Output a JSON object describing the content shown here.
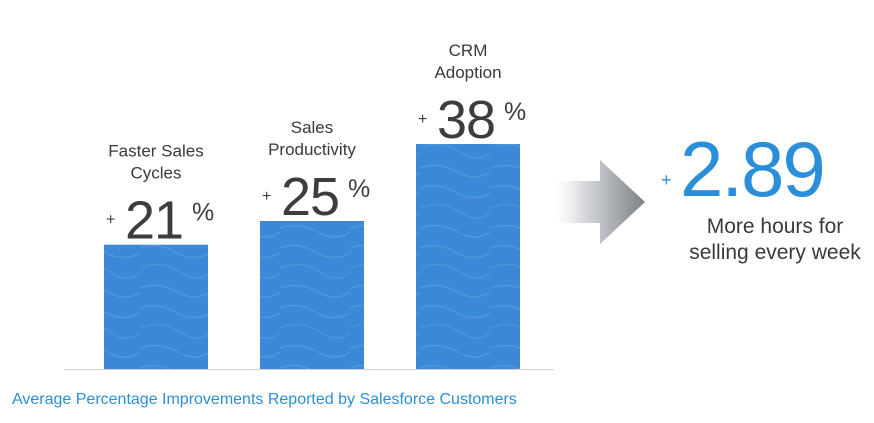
{
  "chart_data": {
    "type": "bar",
    "categories": [
      "Faster Sales Cycles",
      "Sales Productivity",
      "CRM Adoption"
    ],
    "category_lines": [
      [
        "Faster Sales",
        "Cycles"
      ],
      [
        "Sales",
        "Productivity"
      ],
      [
        "CRM",
        "Adoption"
      ]
    ],
    "values": [
      21,
      25,
      38
    ],
    "value_prefix": "+",
    "value_suffix": "%",
    "bar_color": "#3b87d8",
    "caption": "Average Percentage Improvements Reported by Salesforce Customers",
    "grid": false
  },
  "hero": {
    "prefix": "+",
    "value": "2.89",
    "subtitle_lines": [
      "More hours for",
      "selling every week"
    ],
    "color": "#2a8fd8"
  },
  "colors": {
    "text_dark": "#3d3d3d",
    "accent_blue": "#2a8fd8",
    "arrow_gray": "#8a8f96"
  }
}
